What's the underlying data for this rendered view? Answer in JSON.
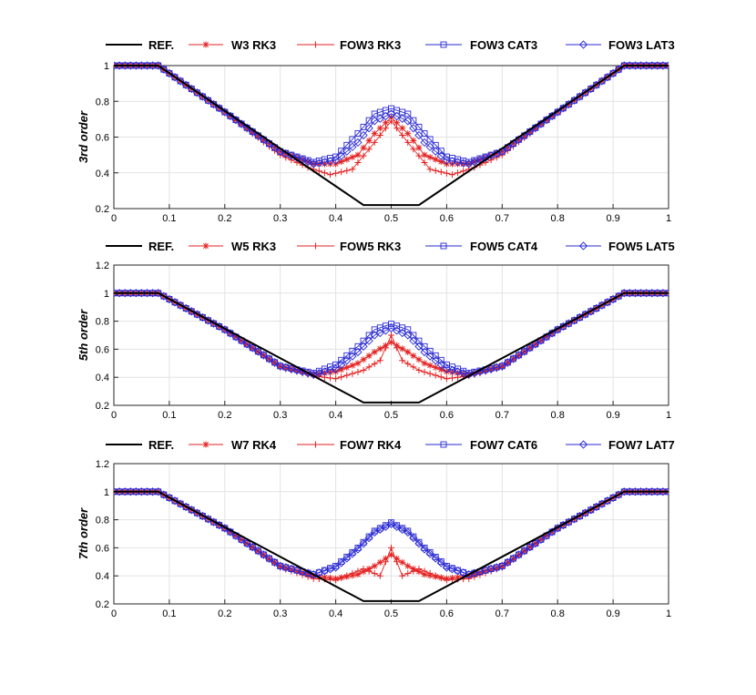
{
  "chart_data": [
    {
      "type": "line",
      "ylabel": "3rd order",
      "xlim": [
        0,
        1
      ],
      "ylim": [
        0.2,
        1.0
      ],
      "xticks": [
        "0",
        "0.1",
        "0.2",
        "0.3",
        "0.4",
        "0.5",
        "0.6",
        "0.7",
        "0.8",
        "0.9",
        "1"
      ],
      "yticks": [
        "0.2",
        "0.4",
        "0.6",
        "0.8",
        "1"
      ],
      "grid": true,
      "legend_position": "top",
      "series": [
        {
          "name": "REF.",
          "color": "#000000",
          "marker": "none",
          "x": [
            0,
            0.08,
            0.45,
            0.55,
            0.92,
            1
          ],
          "y": [
            1,
            1,
            0.22,
            0.22,
            1,
            1
          ]
        },
        {
          "name": "W3 RK3",
          "color": "#e32222",
          "marker": "star",
          "x": [
            0,
            0.08,
            0.2,
            0.3,
            0.36,
            0.4,
            0.44,
            0.47,
            0.5,
            0.53,
            0.56,
            0.6,
            0.64,
            0.7,
            0.8,
            0.92,
            1
          ],
          "y": [
            1,
            1,
            0.74,
            0.52,
            0.45,
            0.45,
            0.5,
            0.62,
            0.71,
            0.62,
            0.5,
            0.45,
            0.45,
            0.52,
            0.74,
            1,
            1
          ]
        },
        {
          "name": "FOW3 RK3",
          "color": "#e32222",
          "marker": "plus",
          "x": [
            0,
            0.08,
            0.2,
            0.3,
            0.35,
            0.39,
            0.43,
            0.47,
            0.5,
            0.53,
            0.57,
            0.61,
            0.65,
            0.7,
            0.8,
            0.92,
            1
          ],
          "y": [
            1,
            1,
            0.74,
            0.5,
            0.43,
            0.39,
            0.42,
            0.57,
            0.69,
            0.57,
            0.42,
            0.39,
            0.43,
            0.5,
            0.74,
            1,
            1
          ]
        },
        {
          "name": "FOW3 CAT3",
          "color": "#2a2ad4",
          "marker": "square",
          "x": [
            0,
            0.08,
            0.2,
            0.3,
            0.36,
            0.4,
            0.44,
            0.47,
            0.5,
            0.53,
            0.56,
            0.6,
            0.64,
            0.7,
            0.8,
            0.92,
            1
          ],
          "y": [
            1,
            1,
            0.74,
            0.52,
            0.46,
            0.49,
            0.62,
            0.73,
            0.76,
            0.73,
            0.62,
            0.49,
            0.46,
            0.52,
            0.74,
            1,
            1
          ]
        },
        {
          "name": "FOW3 LAT3",
          "color": "#2a2ad4",
          "marker": "diamond",
          "x": [
            0,
            0.08,
            0.2,
            0.3,
            0.36,
            0.4,
            0.44,
            0.47,
            0.5,
            0.53,
            0.56,
            0.6,
            0.64,
            0.7,
            0.8,
            0.92,
            1
          ],
          "y": [
            1,
            1,
            0.74,
            0.52,
            0.45,
            0.47,
            0.57,
            0.69,
            0.73,
            0.69,
            0.57,
            0.47,
            0.45,
            0.52,
            0.74,
            1,
            1
          ]
        }
      ]
    },
    {
      "type": "line",
      "ylabel": "5th order",
      "xlim": [
        0,
        1
      ],
      "ylim": [
        0.2,
        1.2
      ],
      "xticks": [
        "0",
        "0.1",
        "0.2",
        "0.3",
        "0.4",
        "0.5",
        "0.6",
        "0.7",
        "0.8",
        "0.9",
        "1"
      ],
      "yticks": [
        "0.2",
        "0.4",
        "0.6",
        "0.8",
        "1",
        "1.2"
      ],
      "grid": true,
      "legend_position": "top",
      "series": [
        {
          "name": "REF.",
          "color": "#000000",
          "marker": "none",
          "x": [
            0,
            0.08,
            0.45,
            0.55,
            0.92,
            1
          ],
          "y": [
            1,
            1,
            0.22,
            0.22,
            1,
            1
          ]
        },
        {
          "name": "W5 RK3",
          "color": "#e32222",
          "marker": "star",
          "x": [
            0,
            0.08,
            0.2,
            0.3,
            0.36,
            0.4,
            0.44,
            0.47,
            0.5,
            0.53,
            0.56,
            0.6,
            0.64,
            0.7,
            0.8,
            0.92,
            1
          ],
          "y": [
            1,
            1,
            0.74,
            0.48,
            0.42,
            0.44,
            0.5,
            0.58,
            0.65,
            0.58,
            0.5,
            0.44,
            0.42,
            0.48,
            0.74,
            1,
            1
          ]
        },
        {
          "name": "FOW5 RK3",
          "color": "#e32222",
          "marker": "plus",
          "x": [
            0,
            0.08,
            0.2,
            0.3,
            0.36,
            0.4,
            0.45,
            0.48,
            0.5,
            0.52,
            0.55,
            0.6,
            0.64,
            0.7,
            0.8,
            0.92,
            1
          ],
          "y": [
            1,
            1,
            0.74,
            0.47,
            0.41,
            0.39,
            0.45,
            0.52,
            0.7,
            0.52,
            0.45,
            0.39,
            0.41,
            0.47,
            0.74,
            1,
            1
          ]
        },
        {
          "name": "FOW5 CAT4",
          "color": "#2a2ad4",
          "marker": "square",
          "x": [
            0,
            0.08,
            0.2,
            0.3,
            0.36,
            0.4,
            0.44,
            0.47,
            0.5,
            0.53,
            0.56,
            0.6,
            0.64,
            0.7,
            0.8,
            0.92,
            1
          ],
          "y": [
            1,
            1,
            0.74,
            0.48,
            0.43,
            0.49,
            0.62,
            0.74,
            0.78,
            0.74,
            0.62,
            0.49,
            0.43,
            0.48,
            0.74,
            1,
            1
          ]
        },
        {
          "name": "FOW5 LAT5",
          "color": "#2a2ad4",
          "marker": "diamond",
          "x": [
            0,
            0.08,
            0.2,
            0.3,
            0.36,
            0.4,
            0.44,
            0.47,
            0.5,
            0.53,
            0.56,
            0.6,
            0.64,
            0.7,
            0.8,
            0.92,
            1
          ],
          "y": [
            1,
            1,
            0.74,
            0.48,
            0.42,
            0.46,
            0.58,
            0.7,
            0.75,
            0.7,
            0.58,
            0.46,
            0.42,
            0.48,
            0.74,
            1,
            1
          ]
        }
      ]
    },
    {
      "type": "line",
      "ylabel": "7th order",
      "xlim": [
        0,
        1
      ],
      "ylim": [
        0.2,
        1.2
      ],
      "xticks": [
        "0",
        "0.1",
        "0.2",
        "0.3",
        "0.4",
        "0.5",
        "0.6",
        "0.7",
        "0.8",
        "0.9",
        "1"
      ],
      "yticks": [
        "0.2",
        "0.4",
        "0.6",
        "0.8",
        "1",
        "1.2"
      ],
      "grid": true,
      "legend_position": "top",
      "series": [
        {
          "name": "REF.",
          "color": "#000000",
          "marker": "none",
          "x": [
            0,
            0.08,
            0.45,
            0.55,
            0.92,
            1
          ],
          "y": [
            1,
            1,
            0.22,
            0.22,
            1,
            1
          ]
        },
        {
          "name": "W7 RK4",
          "color": "#e32222",
          "marker": "star",
          "x": [
            0,
            0.08,
            0.2,
            0.3,
            0.36,
            0.4,
            0.44,
            0.47,
            0.5,
            0.53,
            0.56,
            0.6,
            0.64,
            0.7,
            0.8,
            0.92,
            1
          ],
          "y": [
            1,
            1,
            0.74,
            0.47,
            0.4,
            0.38,
            0.41,
            0.47,
            0.55,
            0.47,
            0.41,
            0.38,
            0.4,
            0.47,
            0.74,
            1,
            1
          ]
        },
        {
          "name": "FOW7 RK4",
          "color": "#e32222",
          "marker": "plus",
          "x": [
            0,
            0.08,
            0.2,
            0.3,
            0.36,
            0.4,
            0.45,
            0.48,
            0.5,
            0.52,
            0.55,
            0.6,
            0.64,
            0.7,
            0.8,
            0.92,
            1
          ],
          "y": [
            1,
            1,
            0.74,
            0.46,
            0.38,
            0.37,
            0.45,
            0.4,
            0.6,
            0.4,
            0.45,
            0.37,
            0.38,
            0.46,
            0.74,
            1,
            1
          ]
        },
        {
          "name": "FOW7 CAT6",
          "color": "#2a2ad4",
          "marker": "square",
          "x": [
            0,
            0.08,
            0.2,
            0.3,
            0.36,
            0.4,
            0.44,
            0.47,
            0.5,
            0.53,
            0.56,
            0.6,
            0.64,
            0.7,
            0.8,
            0.92,
            1
          ],
          "y": [
            1,
            1,
            0.74,
            0.47,
            0.41,
            0.47,
            0.6,
            0.72,
            0.78,
            0.72,
            0.6,
            0.47,
            0.41,
            0.47,
            0.74,
            1,
            1
          ]
        },
        {
          "name": "FOW7 LAT7",
          "color": "#2a2ad4",
          "marker": "diamond",
          "x": [
            0,
            0.08,
            0.2,
            0.3,
            0.36,
            0.4,
            0.44,
            0.47,
            0.5,
            0.53,
            0.56,
            0.6,
            0.64,
            0.7,
            0.8,
            0.92,
            1
          ],
          "y": [
            1,
            1,
            0.74,
            0.47,
            0.41,
            0.46,
            0.59,
            0.71,
            0.77,
            0.71,
            0.59,
            0.46,
            0.41,
            0.47,
            0.74,
            1,
            1
          ]
        }
      ]
    }
  ]
}
